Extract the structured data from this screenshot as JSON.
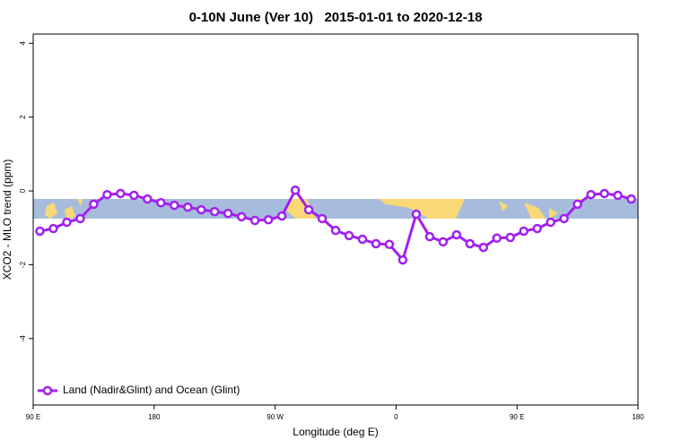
{
  "chart_data": {
    "type": "line",
    "title": "0-10N June (Ver 10)   2015-01-01 to 2020-12-18",
    "x_label": "Longitude (deg E)",
    "y_label": "XCO2 - MLO trend (ppm)",
    "x": [
      95,
      105,
      115,
      125,
      135,
      145,
      155,
      165,
      175,
      185,
      195,
      205,
      215,
      225,
      235,
      245,
      255,
      265,
      275,
      285,
      295,
      305,
      315,
      325,
      335,
      345,
      355,
      365,
      375,
      385,
      395,
      405,
      415,
      425,
      435,
      445,
      455,
      465,
      475,
      485,
      495,
      505,
      515,
      525,
      535
    ],
    "series": [
      {
        "name": "Land (Nadir&Glint) and Ocean (Glint)",
        "color": "#a020f0",
        "values": [
          -1.09,
          -1.02,
          -0.85,
          -0.75,
          -0.36,
          -0.1,
          -0.07,
          -0.12,
          -0.22,
          -0.32,
          -0.39,
          -0.44,
          -0.51,
          -0.56,
          -0.61,
          -0.7,
          -0.8,
          -0.78,
          -0.68,
          0.02,
          -0.51,
          -0.75,
          -1.07,
          -1.21,
          -1.31,
          -1.43,
          -1.45,
          -1.87,
          -0.63,
          -1.24,
          -1.38,
          -1.19,
          -1.43,
          -1.53,
          -1.28,
          -1.26,
          -1.09,
          -1.02,
          -0.85,
          -0.75,
          -0.36,
          -0.1,
          -0.07,
          -0.12,
          -0.22
        ]
      }
    ],
    "xlim": [
      90,
      540
    ],
    "xticks": [
      {
        "value": 90,
        "label": "90 E"
      },
      180,
      {
        "value": 270,
        "label": "90 W"
      },
      {
        "value": 360,
        "label": "0"
      },
      {
        "value": 450,
        "label": "90 E"
      },
      {
        "value": 540,
        "label": "180"
      }
    ],
    "ylim": [
      -5.8,
      4.25
    ],
    "yticks": [
      4,
      2,
      0,
      -2,
      -4
    ],
    "legend": "bottom-left"
  }
}
